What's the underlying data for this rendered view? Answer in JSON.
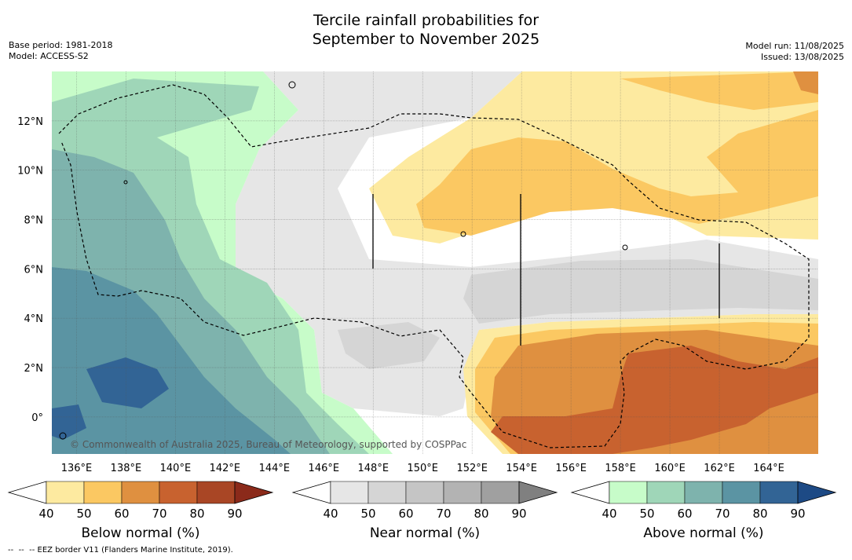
{
  "title_line1": "Tercile rainfall probabilities for",
  "title_line2": "September to November 2025",
  "base_period": "Base period: 1981-2018",
  "model": "Model: ACCESS-S2",
  "model_run": "Model run: 11/08/2025",
  "issued": "Issued: 13/08/2025",
  "copyright": "© Commonwealth of Australia 2025, Bureau of Meteorology, supported by COSPPac",
  "footer": "--  --  -- EEZ border V11 (Flanders Marine Institute, 2019).",
  "map": {
    "lon_range": [
      135,
      166
    ],
    "lat_range": [
      -1.5,
      14
    ],
    "x_ticks": [
      {
        "v": 136,
        "label": "136°E"
      },
      {
        "v": 138,
        "label": "138°E"
      },
      {
        "v": 140,
        "label": "140°E"
      },
      {
        "v": 142,
        "label": "142°E"
      },
      {
        "v": 144,
        "label": "144°E"
      },
      {
        "v": 146,
        "label": "146°E"
      },
      {
        "v": 148,
        "label": "148°E"
      },
      {
        "v": 150,
        "label": "150°E"
      },
      {
        "v": 152,
        "label": "152°E"
      },
      {
        "v": 154,
        "label": "154°E"
      },
      {
        "v": 156,
        "label": "156°E"
      },
      {
        "v": 158,
        "label": "158°E"
      },
      {
        "v": 160,
        "label": "160°E"
      },
      {
        "v": 162,
        "label": "162°E"
      },
      {
        "v": 164,
        "label": "164°E"
      }
    ],
    "y_ticks": [
      {
        "v": 0,
        "label": "0°"
      },
      {
        "v": 2,
        "label": "2°N"
      },
      {
        "v": 4,
        "label": "4°N"
      },
      {
        "v": 6,
        "label": "6°N"
      },
      {
        "v": 8,
        "label": "8°N"
      },
      {
        "v": 10,
        "label": "10°N"
      },
      {
        "v": 12,
        "label": "12°N"
      }
    ]
  },
  "colorbars": [
    {
      "id": "below",
      "label": "Below normal (%)",
      "ticks": [
        "40",
        "50",
        "60",
        "70",
        "80",
        "90"
      ],
      "colors": [
        "#ffffff",
        "#fdeaa0",
        "#fbc862",
        "#df9040",
        "#c8622f",
        "#a94625",
        "#8b2a1a"
      ]
    },
    {
      "id": "near",
      "label": "Near normal (%)",
      "ticks": [
        "40",
        "50",
        "60",
        "70",
        "80",
        "90"
      ],
      "colors": [
        "#ffffff",
        "#e6e6e6",
        "#d5d5d5",
        "#c5c5c5",
        "#b3b3b3",
        "#a0a0a0",
        "#808080"
      ]
    },
    {
      "id": "above",
      "label": "Above normal (%)",
      "ticks": [
        "40",
        "50",
        "60",
        "70",
        "80",
        "90"
      ],
      "colors": [
        "#ffffff",
        "#c7fcc9",
        "#9fd6b8",
        "#7eb3ad",
        "#5b94a3",
        "#326495",
        "#1d4a85"
      ]
    }
  ]
}
